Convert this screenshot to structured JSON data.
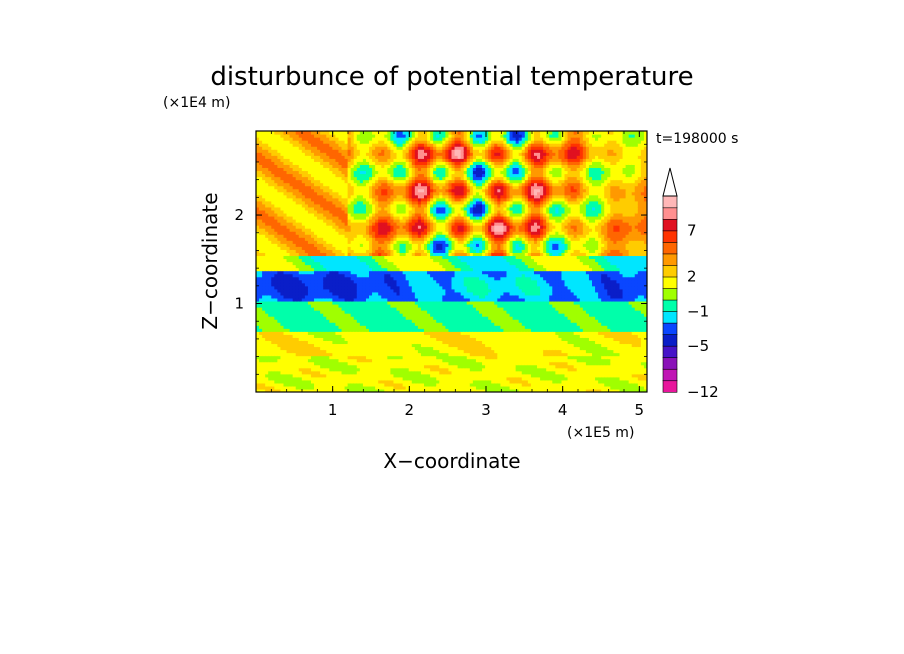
{
  "chart_data": {
    "type": "heatmap",
    "title": "disturbunce of potential temperature",
    "time_label": "t=198000 s",
    "xlabel": "X−coordinate",
    "ylabel": "Z−coordinate",
    "x_unit": "(×1E5 m)",
    "y_unit": "(×1E4 m)",
    "xlim": [
      0,
      5.1
    ],
    "ylim": [
      0,
      2.95
    ],
    "x_ticks": [
      1,
      2,
      3,
      4,
      5
    ],
    "x_tick_labels": [
      "1",
      "2",
      "3",
      "4",
      "5"
    ],
    "y_ticks": [
      1,
      2
    ],
    "y_tick_labels": [
      "1",
      "2"
    ],
    "colorbar": {
      "levels": [
        {
          "color": "#e8169c"
        },
        {
          "color": "#c014b4"
        },
        {
          "color": "#8a12b8"
        },
        {
          "color": "#4614c8"
        },
        {
          "color": "#0a1ec8"
        },
        {
          "color": "#0a46ff"
        },
        {
          "color": "#00e6ff"
        },
        {
          "color": "#00ffaa"
        },
        {
          "color": "#a0ff00"
        },
        {
          "color": "#ffff00"
        },
        {
          "color": "#ffcc00"
        },
        {
          "color": "#ff9900"
        },
        {
          "color": "#ff6600"
        },
        {
          "color": "#ff3300"
        },
        {
          "color": "#e01020"
        },
        {
          "color": "#ff9090"
        },
        {
          "color": "#ffb8b8"
        }
      ],
      "tick_labels": [
        "7",
        "2",
        "−1",
        "−5",
        "−12"
      ],
      "tick_level_index": [
        14,
        10,
        7,
        4,
        0
      ]
    },
    "fields": {
      "lower_yellow_band": {
        "z_range": [
          0.1,
          0.65
        ],
        "value": 0.5
      },
      "cyan_band": {
        "z_range": [
          0.65,
          1.3
        ],
        "value": -1.5
      },
      "blue_band": {
        "z_range": [
          1.05,
          1.35
        ],
        "value": -4
      },
      "upper_wave_region": {
        "z_range": [
          1.4,
          2.95
        ],
        "value_range": [
          -5,
          7
        ]
      }
    }
  }
}
